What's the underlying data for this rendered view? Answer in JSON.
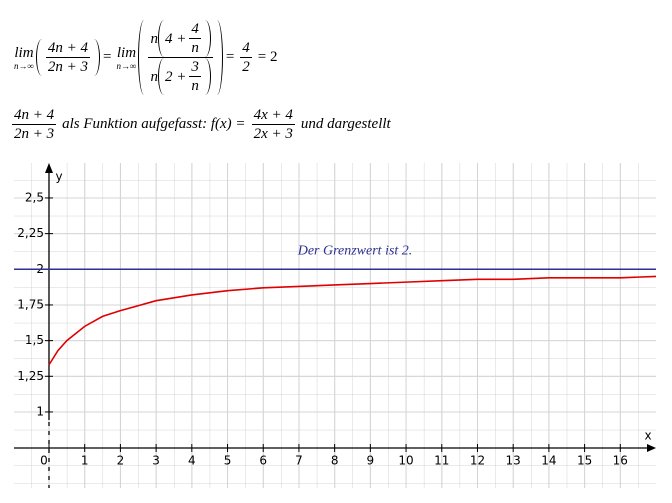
{
  "formula_limit": {
    "lim1": "lim",
    "sub1": "n→∞",
    "num1": "4n + 4",
    "den1": "2n + 3",
    "eq1": "=",
    "lim2": "lim",
    "sub2": "n→∞",
    "num2a": "n",
    "num2b": "4 +",
    "num2c": "4",
    "num2d": "n",
    "den2a": "n",
    "den2b": "2 +",
    "den2c": "3",
    "den2d": "n",
    "eq2": "=",
    "num3": "4",
    "den3": "2",
    "eq3": "= 2"
  },
  "formula_function": {
    "num1": "4n + 4",
    "den1": "2n + 3",
    "text1": "als Funktion aufgefasst: f(x) =",
    "num2": "4x + 4",
    "den2": "2x + 3",
    "text2": "und dargestellt"
  },
  "chart_data": {
    "type": "line",
    "x": [
      0,
      0.25,
      0.5,
      1,
      1.5,
      2,
      3,
      4,
      5,
      6,
      7,
      8,
      9,
      10,
      11,
      12,
      13,
      14,
      15,
      16,
      17
    ],
    "values": [
      1.33,
      1.43,
      1.5,
      1.6,
      1.67,
      1.71,
      1.78,
      1.82,
      1.85,
      1.87,
      1.88,
      1.89,
      1.9,
      1.91,
      1.92,
      1.93,
      1.93,
      1.94,
      1.94,
      1.94,
      1.95
    ],
    "color": "#e00000",
    "limit_line": {
      "value": 2,
      "color": "#2e3192",
      "label": "Der Grenzwert ist 2."
    },
    "x_label": "x",
    "y_label": "y",
    "xlim": [
      -0.98,
      17
    ],
    "ylim": [
      0.467,
      2.745
    ],
    "xticks": [
      0,
      1,
      2,
      3,
      4,
      5,
      6,
      7,
      8,
      9,
      10,
      11,
      12,
      13,
      14,
      15,
      16
    ],
    "yticks": [
      {
        "value": 1,
        "label": "1"
      },
      {
        "value": 1.25,
        "label": "1,25"
      },
      {
        "value": 1.5,
        "label": "1,5"
      },
      {
        "value": 1.75,
        "label": "1,75"
      },
      {
        "value": 2,
        "label": "2"
      },
      {
        "value": 2.25,
        "label": "2,25"
      },
      {
        "value": 2.5,
        "label": "2,5"
      }
    ],
    "grid": true
  }
}
